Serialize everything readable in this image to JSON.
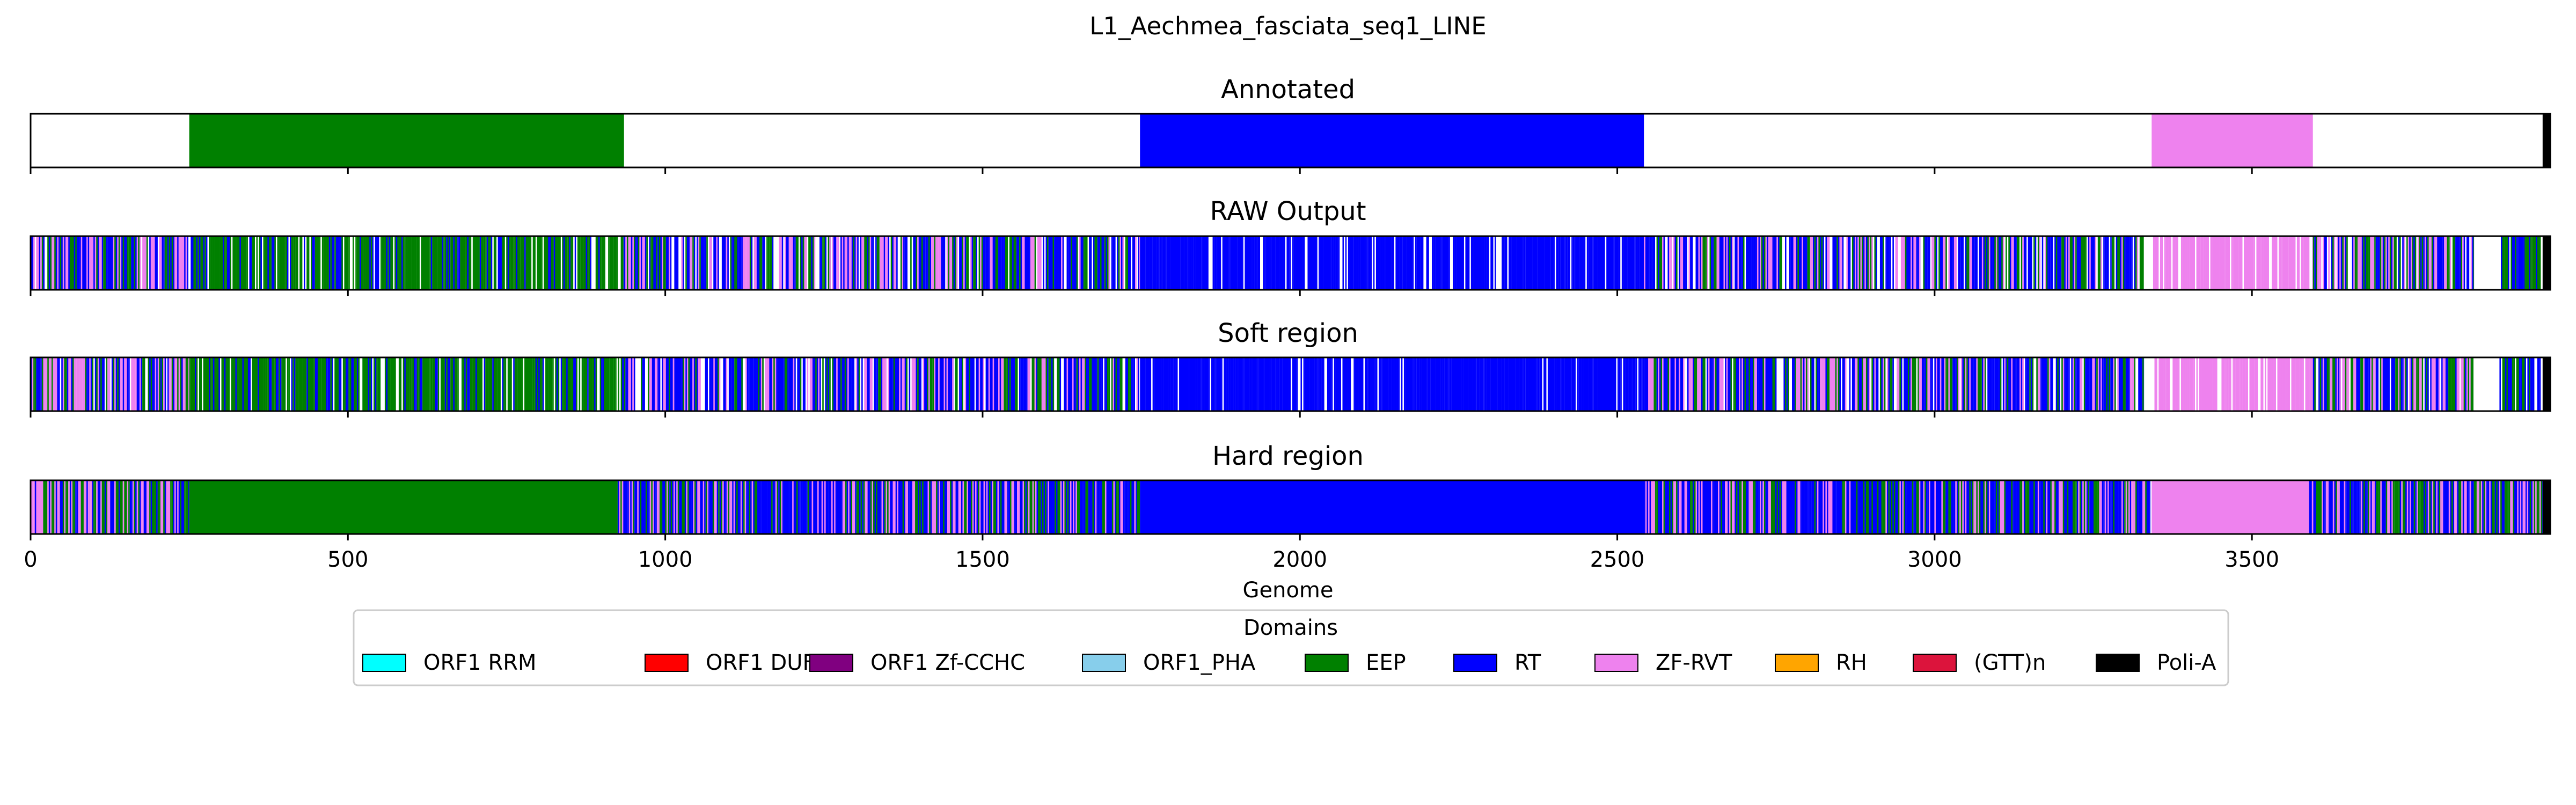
{
  "chart_data": {
    "type": "track",
    "title": "L1_Aechmea_fasciata_seq1_LINE",
    "xlabel": "Genome",
    "xlim": [
      0,
      3970
    ],
    "x_ticks": [
      0,
      500,
      1000,
      1500,
      2000,
      2500,
      3000,
      3500
    ],
    "grid": "dashed vertical on bottom panel",
    "legend": {
      "title": "Domains",
      "placement": "below",
      "entries": [
        {
          "label": "ORF1 RRM",
          "color": "#00ffff"
        },
        {
          "label": "ORF1 DUF",
          "color": "#ff0000"
        },
        {
          "label": "ORF1 Zf-CCHC",
          "color": "#800080"
        },
        {
          "label": "ORF1_PHA",
          "color": "#87ceeb"
        },
        {
          "label": "EEP",
          "color": "#008000"
        },
        {
          "label": "RT",
          "color": "#0000ff"
        },
        {
          "label": "ZF-RVT",
          "color": "#ee82ee"
        },
        {
          "label": "RH",
          "color": "#ffa500"
        },
        {
          "label": "(GTT)n",
          "color": "#dc143c"
        },
        {
          "label": "Poli-A",
          "color": "#000000"
        }
      ]
    },
    "panels": [
      {
        "title": "Annotated",
        "segments": [
          {
            "start": 250,
            "end": 935,
            "domain": "EEP"
          },
          {
            "start": 1748,
            "end": 2542,
            "domain": "RT"
          },
          {
            "start": 3342,
            "end": 3596,
            "domain": "ZF-RVT"
          },
          {
            "start": 3958,
            "end": 3970,
            "domain": "Poli-A"
          }
        ]
      },
      {
        "title": "RAW Output",
        "segments": [
          {
            "start": 0,
            "end": 250,
            "domain": "RT",
            "pattern": "dense-mixed",
            "mix": [
              "RT",
              "EEP",
              "ZF-RVT"
            ],
            "fill": 0.85
          },
          {
            "start": 250,
            "end": 935,
            "domain": "EEP",
            "pattern": "dense-mixed",
            "mix": [
              "EEP",
              "EEP",
              "EEP",
              "RT"
            ],
            "fill": 0.8
          },
          {
            "start": 935,
            "end": 1748,
            "domain": "RT",
            "pattern": "dense-mixed",
            "mix": [
              "RT",
              "RT",
              "EEP",
              "ZF-RVT"
            ],
            "fill": 0.75
          },
          {
            "start": 1748,
            "end": 2542,
            "domain": "RT",
            "pattern": "dense-mixed",
            "mix": [
              "RT"
            ],
            "fill": 0.85
          },
          {
            "start": 2542,
            "end": 3330,
            "domain": "RT",
            "pattern": "dense-mixed",
            "mix": [
              "RT",
              "RT",
              "EEP",
              "ZF-RVT"
            ],
            "fill": 0.8
          },
          {
            "start": 3342,
            "end": 3596,
            "domain": "ZF-RVT",
            "pattern": "dense-mixed",
            "mix": [
              "ZF-RVT"
            ],
            "fill": 0.7
          },
          {
            "start": 3596,
            "end": 3850,
            "domain": "RT",
            "pattern": "dense-mixed",
            "mix": [
              "RT",
              "EEP",
              "ZF-RVT"
            ],
            "fill": 0.8
          },
          {
            "start": 3890,
            "end": 3955,
            "domain": "RT",
            "pattern": "dense-mixed",
            "mix": [
              "RT",
              "EEP"
            ],
            "fill": 0.85
          },
          {
            "start": 3958,
            "end": 3970,
            "domain": "Poli-A"
          }
        ]
      },
      {
        "title": "Soft region",
        "segments": [
          {
            "start": 0,
            "end": 250,
            "domain": "RT",
            "pattern": "dense-mixed",
            "mix": [
              "RT",
              "EEP",
              "ZF-RVT"
            ],
            "fill": 0.85
          },
          {
            "start": 250,
            "end": 935,
            "domain": "EEP",
            "pattern": "dense-mixed",
            "mix": [
              "EEP",
              "EEP",
              "EEP",
              "RT"
            ],
            "fill": 0.8
          },
          {
            "start": 935,
            "end": 1748,
            "domain": "RT",
            "pattern": "dense-mixed",
            "mix": [
              "RT",
              "RT",
              "EEP",
              "ZF-RVT"
            ],
            "fill": 0.8
          },
          {
            "start": 1748,
            "end": 2542,
            "domain": "RT",
            "pattern": "dense-mixed",
            "mix": [
              "RT"
            ],
            "fill": 0.88
          },
          {
            "start": 2542,
            "end": 3330,
            "domain": "RT",
            "pattern": "dense-mixed",
            "mix": [
              "RT",
              "RT",
              "EEP",
              "ZF-RVT"
            ],
            "fill": 0.82
          },
          {
            "start": 3342,
            "end": 3596,
            "domain": "ZF-RVT",
            "pattern": "dense-mixed",
            "mix": [
              "ZF-RVT"
            ],
            "fill": 0.7
          },
          {
            "start": 3596,
            "end": 3850,
            "domain": "RT",
            "pattern": "dense-mixed",
            "mix": [
              "RT",
              "EEP",
              "ZF-RVT"
            ],
            "fill": 0.8
          },
          {
            "start": 3890,
            "end": 3955,
            "domain": "RT",
            "pattern": "dense-mixed",
            "mix": [
              "RT",
              "EEP"
            ],
            "fill": 0.85
          },
          {
            "start": 3958,
            "end": 3970,
            "domain": "Poli-A"
          }
        ]
      },
      {
        "title": "Hard region",
        "segments": [
          {
            "start": 0,
            "end": 250,
            "domain": "RT",
            "pattern": "dense-mixed",
            "mix": [
              "RT",
              "EEP",
              "ZF-RVT"
            ],
            "fill": 1.0
          },
          {
            "start": 250,
            "end": 925,
            "domain": "EEP"
          },
          {
            "start": 925,
            "end": 1748,
            "domain": "RT",
            "pattern": "dense-mixed",
            "mix": [
              "RT",
              "RT",
              "EEP",
              "ZF-RVT"
            ],
            "fill": 1.0
          },
          {
            "start": 1748,
            "end": 2542,
            "domain": "RT"
          },
          {
            "start": 2542,
            "end": 3340,
            "domain": "RT",
            "pattern": "dense-mixed",
            "mix": [
              "RT",
              "RT",
              "EEP",
              "ZF-RVT"
            ],
            "fill": 1.0
          },
          {
            "start": 3342,
            "end": 3590,
            "domain": "ZF-RVT"
          },
          {
            "start": 3590,
            "end": 3958,
            "domain": "RT",
            "pattern": "dense-mixed",
            "mix": [
              "RT",
              "EEP",
              "ZF-RVT"
            ],
            "fill": 1.0
          },
          {
            "start": 3958,
            "end": 3970,
            "domain": "Poli-A"
          }
        ]
      }
    ]
  }
}
